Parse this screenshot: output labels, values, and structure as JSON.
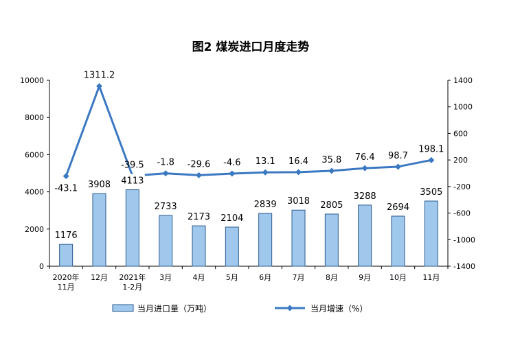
{
  "chart_data": {
    "type": "bar",
    "title": "图2  煤炭进口月度走势",
    "categories": [
      [
        "2020年",
        "11月"
      ],
      [
        "12月"
      ],
      [
        "2021年",
        "1-2月"
      ],
      [
        "3月"
      ],
      [
        "4月"
      ],
      [
        "5月"
      ],
      [
        "6月"
      ],
      [
        "7月"
      ],
      [
        "8月"
      ],
      [
        "9月"
      ],
      [
        "10月"
      ],
      [
        "11月"
      ]
    ],
    "series": [
      {
        "name": "当月进口量（万吨）",
        "type": "bar",
        "axis": "left",
        "color": "#9fc8ec",
        "values": [
          1176,
          3908,
          4113,
          2733,
          2173,
          2104,
          2839,
          3018,
          2805,
          3288,
          2694,
          3505
        ],
        "labels": [
          "1176",
          "3908",
          "4113",
          "2733",
          "2173",
          "2104",
          "2839",
          "3018",
          "2805",
          "3288",
          "2694",
          "3505"
        ]
      },
      {
        "name": "当月增速（%）",
        "type": "line",
        "axis": "right",
        "color": "#3a78c2",
        "values": [
          -43.1,
          1311.2,
          -39.5,
          -1.8,
          -29.6,
          -4.6,
          13.1,
          16.4,
          35.8,
          76.4,
          98.7,
          198.1
        ],
        "labels": [
          "-43.1",
          "1311.2",
          "-39.5",
          "-1.8",
          "-29.6",
          "-4.6",
          "13.1",
          "16.4",
          "35.8",
          "76.4",
          "98.7",
          "198.1"
        ]
      }
    ],
    "y_left": {
      "min": 0,
      "max": 10000,
      "ticks": [
        0,
        2000,
        4000,
        6000,
        8000,
        10000
      ],
      "tick_labels": [
        "0",
        "2000",
        "4000",
        "6000",
        "8000",
        "10000"
      ]
    },
    "y_right": {
      "min": -1400,
      "max": 1400,
      "ticks": [
        -1400,
        -1000,
        -600,
        -200,
        200,
        600,
        1000,
        1400
      ],
      "tick_labels": [
        "-1400",
        "-1000",
        "-600",
        "-200",
        "200",
        "600",
        "1000",
        "1400"
      ]
    },
    "grid": false,
    "legend_position": "bottom"
  }
}
